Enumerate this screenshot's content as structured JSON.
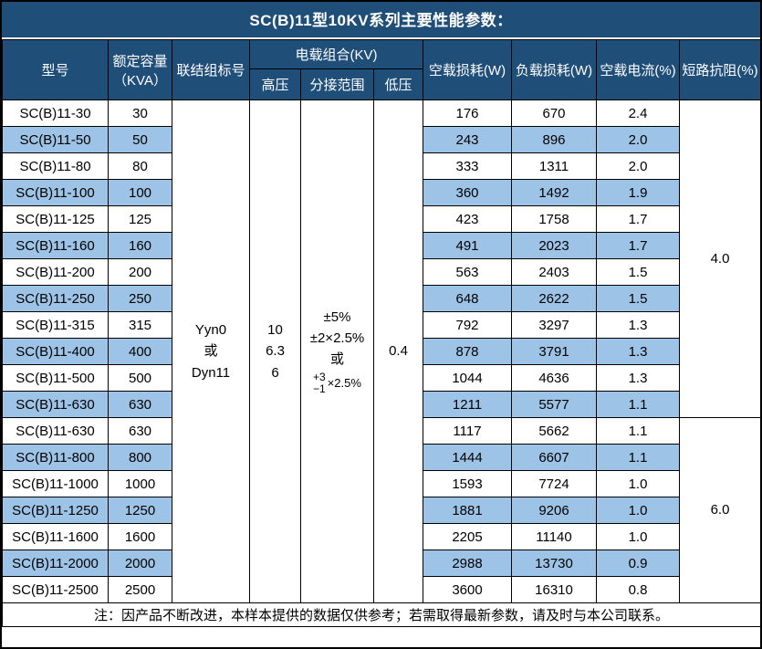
{
  "title": "SC(B)11型10KV系列主要性能参数：",
  "colors": {
    "header_bg": "#1F4E79",
    "header_text": "#FFFFFF",
    "row_alt_bg": "#9DC3E6",
    "row_bg": "#FFFFFF",
    "border": "#000000"
  },
  "header": {
    "model": "型号",
    "capacity_line1": "额定容量",
    "capacity_line2": "（KVA）",
    "connection": "联结组标号",
    "voltage_group": "电载组合(KV)",
    "hv": "高压",
    "tap_range": "分接范围",
    "lv": "低压",
    "no_load_loss": "空载损耗(W)",
    "load_loss": "负载损耗(W)",
    "no_load_current": "空载电流(%)",
    "impedance": "短路抗阻(%)"
  },
  "merged": {
    "connection_lines": [
      "Yyn0",
      "或",
      "Dyn11"
    ],
    "hv_lines": [
      "10",
      "6.3",
      "6"
    ],
    "tap_lines": [
      "±5%",
      "±2×2.5%",
      "或"
    ],
    "tap_frac_top": "+3",
    "tap_frac_bottom": "−1",
    "tap_frac_suffix": "×2.5%",
    "lv": "0.4",
    "impedance_groups": [
      {
        "value": "4.0",
        "rows": 12
      },
      {
        "value": "6.0",
        "rows": 7
      }
    ]
  },
  "rows": [
    {
      "model": "SC(B)11-30",
      "kva": "30",
      "no_load_loss": "176",
      "load_loss": "670",
      "no_load_current": "2.4"
    },
    {
      "model": "SC(B)11-50",
      "kva": "50",
      "no_load_loss": "243",
      "load_loss": "896",
      "no_load_current": "2.0"
    },
    {
      "model": "SC(B)11-80",
      "kva": "80",
      "no_load_loss": "333",
      "load_loss": "1311",
      "no_load_current": "2.0"
    },
    {
      "model": "SC(B)11-100",
      "kva": "100",
      "no_load_loss": "360",
      "load_loss": "1492",
      "no_load_current": "1.9"
    },
    {
      "model": "SC(B)11-125",
      "kva": "125",
      "no_load_loss": "423",
      "load_loss": "1758",
      "no_load_current": "1.7"
    },
    {
      "model": "SC(B)11-160",
      "kva": "160",
      "no_load_loss": "491",
      "load_loss": "2023",
      "no_load_current": "1.7"
    },
    {
      "model": "SC(B)11-200",
      "kva": "200",
      "no_load_loss": "563",
      "load_loss": "2403",
      "no_load_current": "1.5"
    },
    {
      "model": "SC(B)11-250",
      "kva": "250",
      "no_load_loss": "648",
      "load_loss": "2622",
      "no_load_current": "1.5"
    },
    {
      "model": "SC(B)11-315",
      "kva": "315",
      "no_load_loss": "792",
      "load_loss": "3297",
      "no_load_current": "1.3"
    },
    {
      "model": "SC(B)11-400",
      "kva": "400",
      "no_load_loss": "878",
      "load_loss": "3791",
      "no_load_current": "1.3"
    },
    {
      "model": "SC(B)11-500",
      "kva": "500",
      "no_load_loss": "1044",
      "load_loss": "4636",
      "no_load_current": "1.3"
    },
    {
      "model": "SC(B)11-630",
      "kva": "630",
      "no_load_loss": "1211",
      "load_loss": "5577",
      "no_load_current": "1.1"
    },
    {
      "model": "SC(B)11-630",
      "kva": "630",
      "no_load_loss": "1117",
      "load_loss": "5662",
      "no_load_current": "1.1"
    },
    {
      "model": "SC(B)11-800",
      "kva": "800",
      "no_load_loss": "1444",
      "load_loss": "6607",
      "no_load_current": "1.1"
    },
    {
      "model": "SC(B)11-1000",
      "kva": "1000",
      "no_load_loss": "1593",
      "load_loss": "7724",
      "no_load_current": "1.0"
    },
    {
      "model": "SC(B)11-1250",
      "kva": "1250",
      "no_load_loss": "1881",
      "load_loss": "9206",
      "no_load_current": "1.0"
    },
    {
      "model": "SC(B)11-1600",
      "kva": "1600",
      "no_load_loss": "2205",
      "load_loss": "11140",
      "no_load_current": "1.0"
    },
    {
      "model": "SC(B)11-2000",
      "kva": "2000",
      "no_load_loss": "2988",
      "load_loss": "13730",
      "no_load_current": "0.9"
    },
    {
      "model": "SC(B)11-2500",
      "kva": "2500",
      "no_load_loss": "3600",
      "load_loss": "16310",
      "no_load_current": "0.8"
    }
  ],
  "footer_note": "注：因产品不断改进，本样本提供的数据仅供参考；若需取得最新参数，请及时与本公司联系。"
}
